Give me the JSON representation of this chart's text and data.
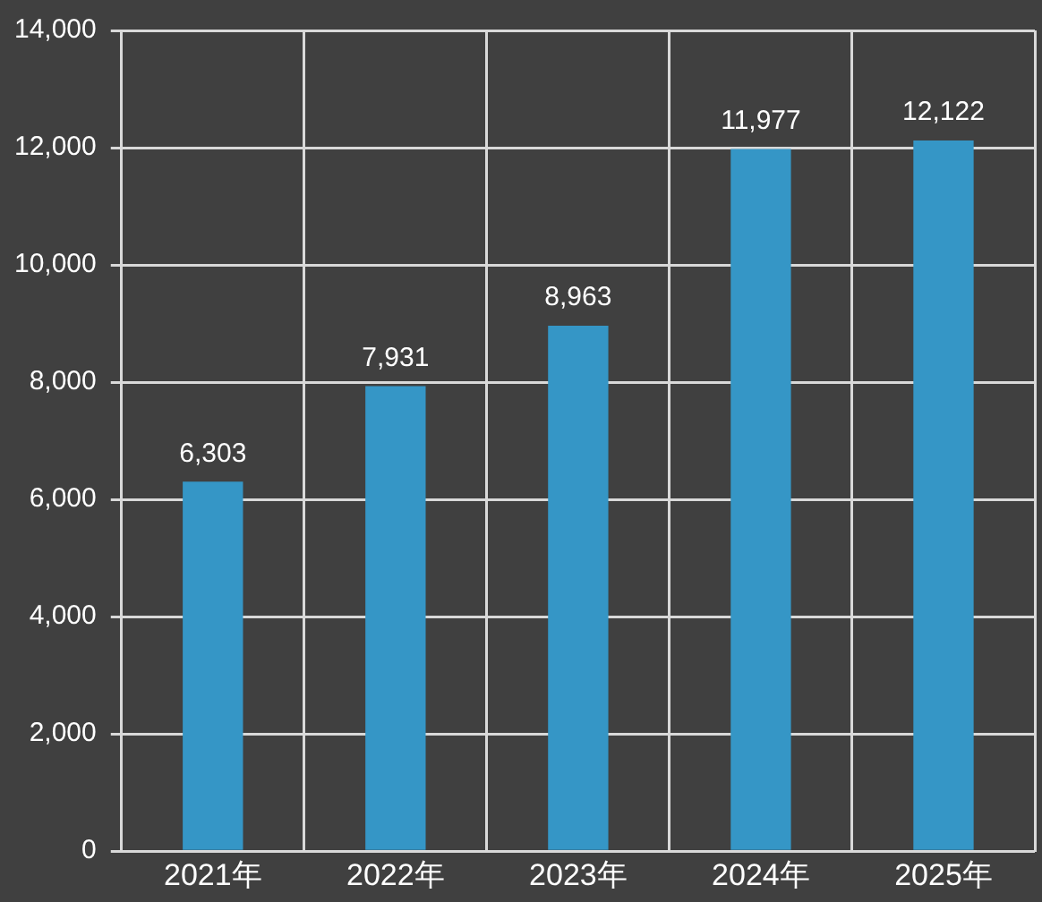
{
  "chart_data": {
    "type": "bar",
    "categories": [
      "2021年",
      "2022年",
      "2023年",
      "2024年",
      "2025年"
    ],
    "values": [
      6303,
      7931,
      8963,
      11977,
      12122
    ],
    "value_labels": [
      "6,303",
      "7,931",
      "8,963",
      "11,977",
      "12,122"
    ],
    "color": "#3596c6",
    "ylim": [
      0,
      14000
    ],
    "yticks": [
      0,
      {
        "value": 2000,
        "label": "2,000"
      },
      {
        "value": 4000,
        "label": "4,000"
      },
      {
        "value": 6000,
        "label": "6,000"
      },
      {
        "value": 8000,
        "label": "8,000"
      },
      {
        "value": 10000,
        "label": "10,000"
      },
      {
        "value": 12000,
        "label": "12,000"
      },
      {
        "value": 14000,
        "label": "14,000"
      }
    ],
    "grid": true
  }
}
